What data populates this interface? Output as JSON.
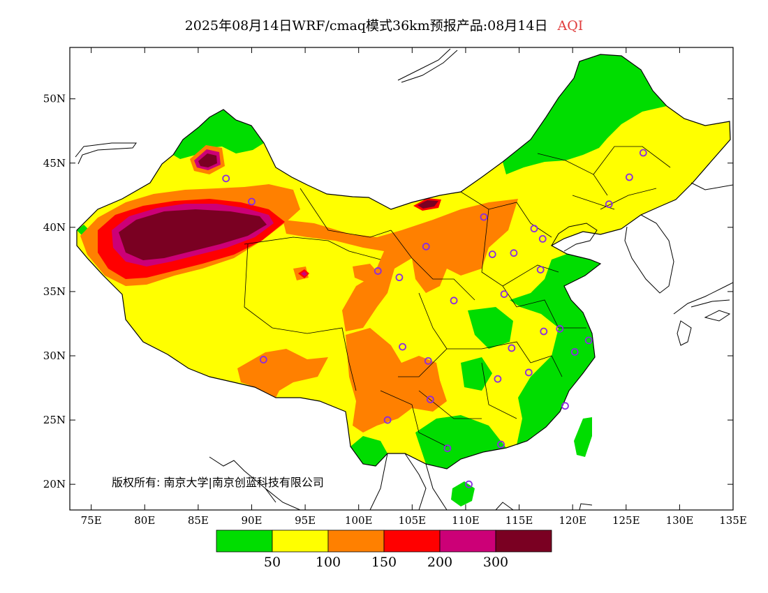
{
  "title": {
    "main": "2025年08月14日WRF/cmaq模式36km预报产品:08月14日",
    "product": "AQI"
  },
  "copyright": "版权所有: 南京大学|南京创蓝科技有限公司",
  "axes": {
    "x_ticks": [
      "75E",
      "80E",
      "85E",
      "90E",
      "95E",
      "100E",
      "105E",
      "110E",
      "115E",
      "120E",
      "125E",
      "130E",
      "135E"
    ],
    "y_ticks": [
      "50N",
      "45N",
      "40N",
      "35N",
      "30N",
      "25N",
      "20N"
    ],
    "lon_range": [
      73,
      135
    ],
    "lat_range": [
      18,
      54
    ]
  },
  "legend": {
    "colors": [
      "#00dd00",
      "#ffff00",
      "#ff8000",
      "#ff0000",
      "#cc0077",
      "#7a0022"
    ],
    "labels": [
      "50",
      "100",
      "150",
      "200",
      "300"
    ]
  },
  "stations": [
    {
      "lon": 87.6,
      "lat": 43.8
    },
    {
      "lon": 91.1,
      "lat": 29.7
    },
    {
      "lon": 101.8,
      "lat": 36.6
    },
    {
      "lon": 103.8,
      "lat": 36.1
    },
    {
      "lon": 106.3,
      "lat": 38.5
    },
    {
      "lon": 104.1,
      "lat": 30.7
    },
    {
      "lon": 106.5,
      "lat": 29.6
    },
    {
      "lon": 106.7,
      "lat": 26.6
    },
    {
      "lon": 102.7,
      "lat": 25.0
    },
    {
      "lon": 108.9,
      "lat": 34.3
    },
    {
      "lon": 111.7,
      "lat": 40.8
    },
    {
      "lon": 112.5,
      "lat": 37.9
    },
    {
      "lon": 114.5,
      "lat": 38.0
    },
    {
      "lon": 116.4,
      "lat": 39.9
    },
    {
      "lon": 117.2,
      "lat": 39.1
    },
    {
      "lon": 117.0,
      "lat": 36.7
    },
    {
      "lon": 113.6,
      "lat": 34.8
    },
    {
      "lon": 114.3,
      "lat": 30.6
    },
    {
      "lon": 113.0,
      "lat": 28.2
    },
    {
      "lon": 115.9,
      "lat": 28.7
    },
    {
      "lon": 117.3,
      "lat": 31.9
    },
    {
      "lon": 118.8,
      "lat": 32.1
    },
    {
      "lon": 121.5,
      "lat": 31.2
    },
    {
      "lon": 120.2,
      "lat": 30.3
    },
    {
      "lon": 119.3,
      "lat": 26.1
    },
    {
      "lon": 113.3,
      "lat": 23.1
    },
    {
      "lon": 108.3,
      "lat": 22.8
    },
    {
      "lon": 110.3,
      "lat": 20.0
    },
    {
      "lon": 123.4,
      "lat": 41.8
    },
    {
      "lon": 125.3,
      "lat": 43.9
    },
    {
      "lon": 126.6,
      "lat": 45.8
    },
    {
      "lon": 90.0,
      "lat": 42.0
    }
  ]
}
